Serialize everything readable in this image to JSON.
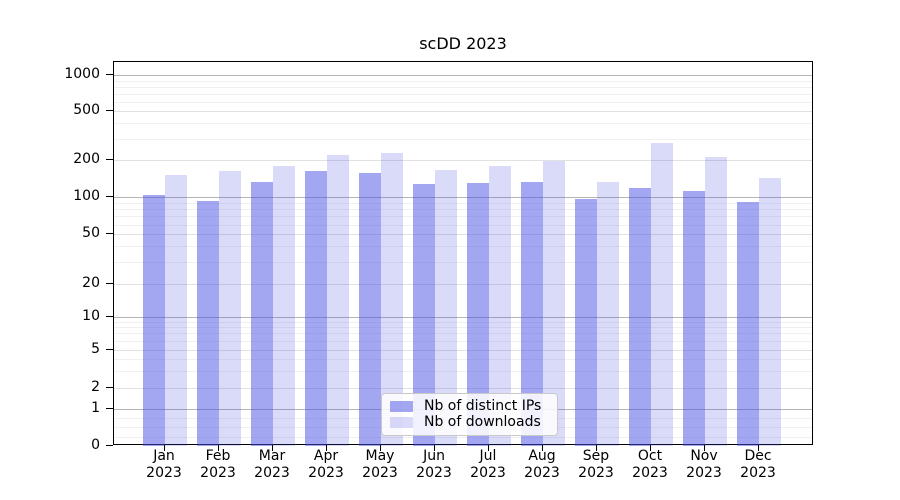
{
  "chart_data": {
    "type": "bar",
    "title": "scDD 2023",
    "categories": [
      "Jan 2023",
      "Feb 2023",
      "Mar 2023",
      "Apr 2023",
      "May 2023",
      "Jun 2023",
      "Jul 2023",
      "Aug 2023",
      "Sep 2023",
      "Oct 2023",
      "Nov 2023",
      "Dec 2023"
    ],
    "series": [
      {
        "name": "Nb of distinct IPs",
        "color": "rgba(72,77,226,0.5)",
        "values": [
          104,
          94,
          133,
          164,
          159,
          128,
          130,
          134,
          96,
          120,
          113,
          92
        ]
      },
      {
        "name": "Nb of downloads",
        "color": "rgba(72,77,226,0.2)",
        "values": [
          153,
          163,
          180,
          220,
          228,
          167,
          180,
          199,
          134,
          278,
          214,
          143
        ]
      }
    ],
    "y_ticks": [
      0,
      1,
      2,
      5,
      10,
      20,
      50,
      100,
      200,
      500,
      1000
    ],
    "yscale": "log-like (symlog: linear 0-1, logarithmic above)",
    "ylim": [
      0,
      1100
    ],
    "xlabel": "",
    "ylabel": "",
    "grid": true,
    "legend_position": "lower center inside plot"
  },
  "colors": {
    "bar_distinct_ips": "rgba(72,77,226,0.5)",
    "bar_downloads": "rgba(72,77,226,0.2)",
    "grid_strong": "#b5b5b5",
    "grid_major": "#e1e1e1",
    "grid_minor": "#f0f0f0",
    "axis": "#000000",
    "background": "#ffffff"
  }
}
